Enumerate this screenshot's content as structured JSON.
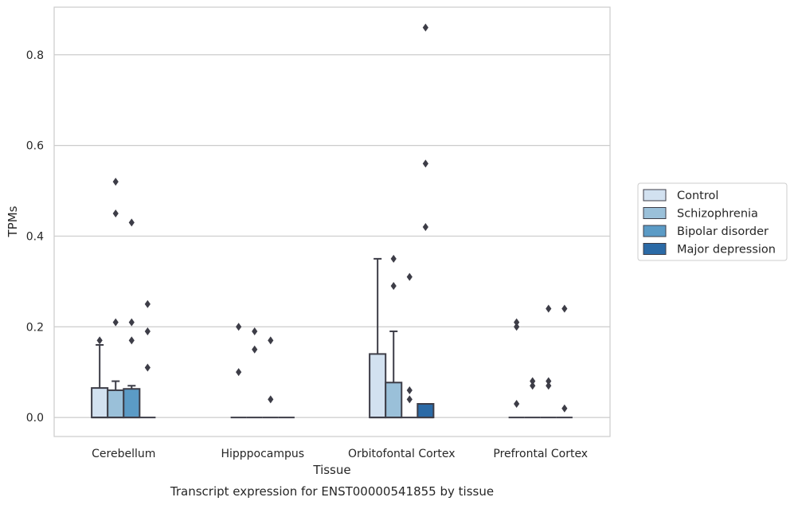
{
  "chart_data": {
    "type": "box",
    "title": "Transcript expression for ENST00000541855 by tissue",
    "xlabel": "Tissue",
    "ylabel": "TPMs",
    "categories": [
      "Cerebellum",
      "Hipppocampus",
      "Orbitofontal Cortex",
      "Prefrontal Cortex"
    ],
    "ylim": [
      -0.042,
      0.905
    ],
    "yticks": [
      0.0,
      0.2,
      0.4,
      0.6,
      0.8
    ],
    "ytick_labels": [
      "0.0",
      "0.2",
      "0.4",
      "0.6",
      "0.8"
    ],
    "grid": "horizontal",
    "legend_position": "right",
    "series": [
      {
        "name": "Control",
        "color": "#d2e1f0",
        "boxes": [
          {
            "q1": 0.0,
            "median": 0.0,
            "q3": 0.065,
            "whisker_low": 0.0,
            "whisker_high": 0.16,
            "outliers": [
              0.17
            ]
          },
          {
            "q1": 0.0,
            "median": 0.0,
            "q3": 0.0,
            "whisker_low": 0.0,
            "whisker_high": 0.0,
            "outliers": [
              0.1,
              0.2
            ]
          },
          {
            "q1": 0.0,
            "median": 0.0,
            "q3": 0.14,
            "whisker_low": 0.0,
            "whisker_high": 0.35,
            "outliers": []
          },
          {
            "q1": 0.0,
            "median": 0.0,
            "q3": 0.0,
            "whisker_low": 0.0,
            "whisker_high": 0.0,
            "outliers": [
              0.03,
              0.2,
              0.21
            ]
          }
        ]
      },
      {
        "name": "Schizophrenia",
        "color": "#9ac0d9",
        "boxes": [
          {
            "q1": 0.0,
            "median": 0.0,
            "q3": 0.06,
            "whisker_low": 0.0,
            "whisker_high": 0.08,
            "outliers": [
              0.21,
              0.45,
              0.52
            ]
          },
          {
            "q1": 0.0,
            "median": 0.0,
            "q3": 0.0,
            "whisker_low": 0.0,
            "whisker_high": 0.0,
            "outliers": [
              0.15,
              0.19
            ]
          },
          {
            "q1": 0.0,
            "median": 0.0,
            "q3": 0.077,
            "whisker_low": 0.0,
            "whisker_high": 0.19,
            "outliers": [
              0.29,
              0.35
            ]
          },
          {
            "q1": 0.0,
            "median": 0.0,
            "q3": 0.0,
            "whisker_low": 0.0,
            "whisker_high": 0.0,
            "outliers": [
              0.07,
              0.08
            ]
          }
        ]
      },
      {
        "name": "Bipolar disorder",
        "color": "#5b9bc6",
        "boxes": [
          {
            "q1": 0.0,
            "median": 0.0,
            "q3": 0.063,
            "whisker_low": 0.0,
            "whisker_high": 0.07,
            "outliers": [
              0.17,
              0.21,
              0.43
            ]
          },
          {
            "q1": 0.0,
            "median": 0.0,
            "q3": 0.0,
            "whisker_low": 0.0,
            "whisker_high": 0.0,
            "outliers": [
              0.04,
              0.17
            ]
          },
          {
            "q1": 0.0,
            "median": 0.0,
            "q3": 0.0,
            "whisker_low": 0.0,
            "whisker_high": 0.0,
            "outliers": [
              0.04,
              0.06,
              0.31
            ]
          },
          {
            "q1": 0.0,
            "median": 0.0,
            "q3": 0.0,
            "whisker_low": 0.0,
            "whisker_high": 0.0,
            "outliers": [
              0.07,
              0.08,
              0.24
            ]
          }
        ]
      },
      {
        "name": "Major depression",
        "color": "#2b6aa6",
        "boxes": [
          {
            "q1": 0.0,
            "median": 0.0,
            "q3": 0.0,
            "whisker_low": 0.0,
            "whisker_high": 0.0,
            "outliers": [
              0.11,
              0.19,
              0.25
            ]
          },
          {
            "q1": 0.0,
            "median": 0.0,
            "q3": 0.0,
            "whisker_low": 0.0,
            "whisker_high": 0.0,
            "outliers": []
          },
          {
            "q1": 0.0,
            "median": 0.0,
            "q3": 0.03,
            "whisker_low": 0.0,
            "whisker_high": 0.03,
            "outliers": [
              0.42,
              0.56,
              0.86
            ]
          },
          {
            "q1": 0.0,
            "median": 0.0,
            "q3": 0.0,
            "whisker_low": 0.0,
            "whisker_high": 0.0,
            "outliers": [
              0.02,
              0.24
            ]
          }
        ]
      }
    ]
  }
}
